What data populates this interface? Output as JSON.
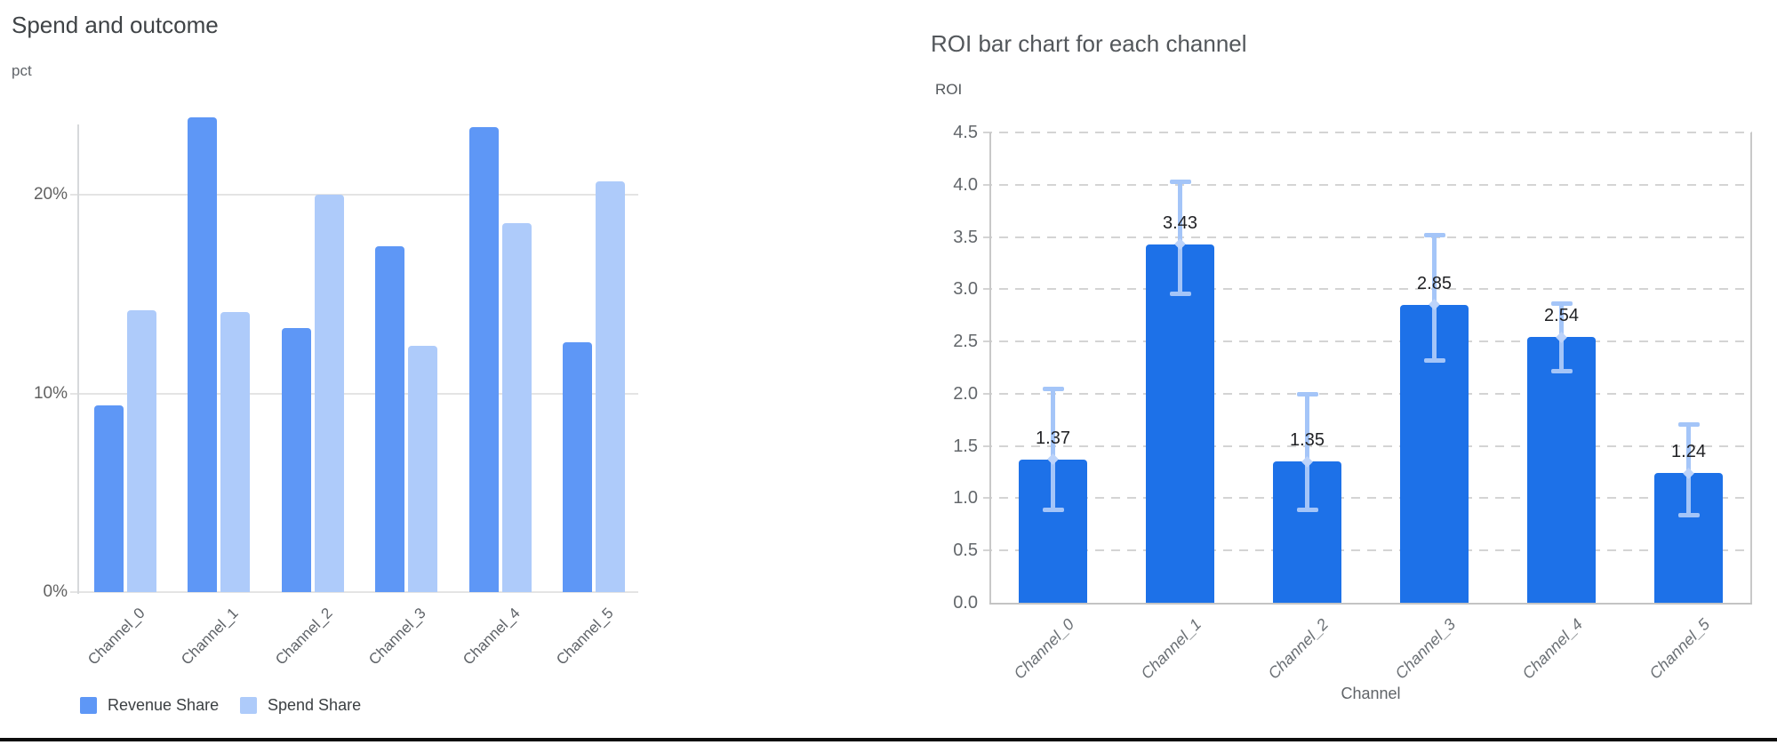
{
  "page": {
    "bottom_border_color": "#0d0d0d"
  },
  "left_chart": {
    "title": "Spend and outcome",
    "y_axis_title": "pct"
  },
  "right_chart": {
    "title": "ROI bar chart for each channel",
    "y_axis_title": "ROI",
    "x_axis_title": "Channel"
  },
  "chart_data": [
    {
      "type": "bar",
      "title": "Spend and outcome",
      "xlabel": "",
      "ylabel": "pct",
      "categories": [
        "Channel_0",
        "Channel_1",
        "Channel_2",
        "Channel_3",
        "Channel_4",
        "Channel_5"
      ],
      "series": [
        {
          "name": "Revenue Share",
          "color": "#5e97f6",
          "values": [
            9.4,
            23.9,
            13.3,
            17.4,
            23.4,
            12.6
          ]
        },
        {
          "name": "Spend Share",
          "color": "#aecbfa",
          "values": [
            14.2,
            14.1,
            20.0,
            12.4,
            18.6,
            20.7
          ]
        }
      ],
      "y_ticks": [
        {
          "value": 0,
          "label": "0%"
        },
        {
          "value": 10,
          "label": "10%"
        },
        {
          "value": 20,
          "label": "20%"
        }
      ],
      "ylim": [
        0,
        23.6
      ],
      "grid": true,
      "legend_position": "bottom-left"
    },
    {
      "type": "bar",
      "title": "ROI bar chart for each channel",
      "xlabel": "Channel",
      "ylabel": "ROI",
      "categories": [
        "Channel_0",
        "Channel_1",
        "Channel_2",
        "Channel_3",
        "Channel_4",
        "Channel_5"
      ],
      "values": [
        1.37,
        3.43,
        1.35,
        2.85,
        2.54,
        1.24
      ],
      "value_labels": [
        "1.37",
        "3.43",
        "1.35",
        "2.85",
        "2.54",
        "1.24"
      ],
      "error_low": [
        0.89,
        2.96,
        0.89,
        2.32,
        2.22,
        0.84
      ],
      "error_high": [
        2.05,
        4.03,
        2.0,
        3.52,
        2.87,
        1.71
      ],
      "bar_color": "#1d71e8",
      "error_color": "#a4c5f8",
      "error_node_color": "#bcd3fa",
      "y_ticks": [
        "0.0",
        "0.5",
        "1.0",
        "1.5",
        "2.0",
        "2.5",
        "3.0",
        "3.5",
        "4.0",
        "4.5"
      ],
      "ylim": [
        0,
        4.5
      ],
      "grid": "dashed",
      "legend_position": "none"
    }
  ]
}
